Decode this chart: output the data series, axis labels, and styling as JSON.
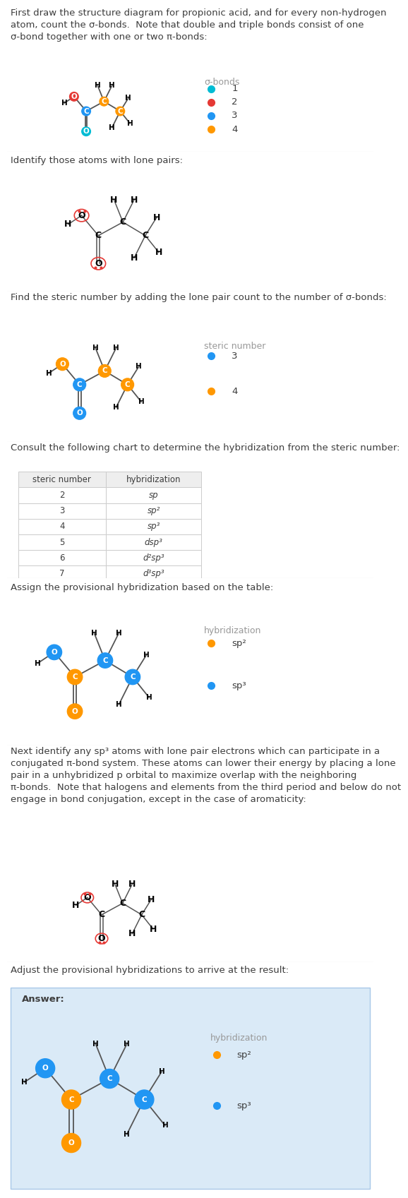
{
  "title_text_1": "First draw the structure diagram for propionic acid, and for every non-hydrogen\natom, count the σ-bonds.  Note that double and triple bonds consist of one\nσ-bond together with one or two π-bonds:",
  "title_text_2": "Identify those atoms with lone pairs:",
  "title_text_3": "Find the steric number by adding the lone pair count to the number of σ-bonds:",
  "title_text_4": "Consult the following chart to determine the hybridization from the steric number:",
  "title_text_5": "Assign the provisional hybridization based on the table:",
  "title_text_6": "Next identify any sp³ atoms with lone pair electrons which can participate in a\nconjugated π-bond system. These atoms can lower their energy by placing a lone\npair in a unhybridized p orbital to maximize overlap with the neighboring\nπ-bonds.  Note that halogens and elements from the third period and below do not\nengage in bond conjugation, except in the case of aromaticity:",
  "title_text_7": "Adjust the provisional hybridizations to arrive at the result:",
  "answer_label": "Answer:",
  "bg_color": "#ffffff",
  "text_color": "#3d3d3d",
  "separator_color": "#cccccc",
  "answer_bg_color": "#daeaf7",
  "table_border": "#bbbbbb",
  "steric_table": {
    "headers": [
      "steric number",
      "hybridization"
    ],
    "rows": [
      [
        "2",
        "sp"
      ],
      [
        "3",
        "sp²"
      ],
      [
        "4",
        "sp³"
      ],
      [
        "5",
        "dsp³"
      ],
      [
        "6",
        "d²sp³"
      ],
      [
        "7",
        "d³sp³"
      ]
    ]
  },
  "colors": {
    "cyan": "#00bcd4",
    "red": "#e53935",
    "blue": "#2196f3",
    "orange": "#ff9800",
    "white": "#ffffff",
    "lone_pair_red": "#e53935",
    "gray_text": "#999999"
  },
  "legend_sigma": {
    "title": "σ-bonds",
    "items": [
      {
        "color": "#00bcd4",
        "label": "1"
      },
      {
        "color": "#e53935",
        "label": "2"
      },
      {
        "color": "#2196f3",
        "label": "3"
      },
      {
        "color": "#ff9800",
        "label": "4"
      }
    ]
  },
  "legend_steric": {
    "title": "steric number",
    "items": [
      {
        "color": "#2196f3",
        "label": "3"
      },
      {
        "color": "#ff9800",
        "label": "4"
      }
    ]
  },
  "legend_hybrid": {
    "title": "hybridization",
    "items": [
      {
        "color": "#ff9800",
        "label": "sp²"
      },
      {
        "color": "#2196f3",
        "label": "sp³"
      }
    ]
  }
}
